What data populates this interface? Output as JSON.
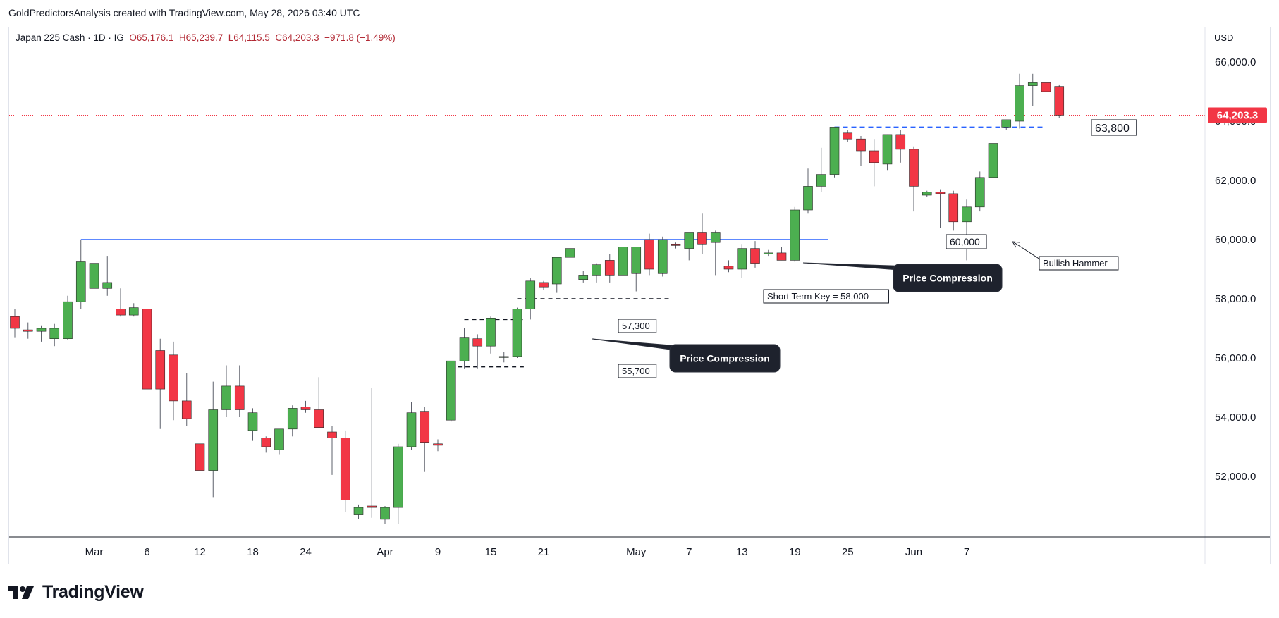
{
  "header": {
    "attribution": "GoldPredictorsAnalysis created with TradingView.com, May 28, 2026 03:40 UTC"
  },
  "legend": {
    "symbol": "Japan 225 Cash · 1D · IG",
    "open": "O65,176.1",
    "high": "H65,239.7",
    "low": "L64,115.5",
    "close": "C64,203.3",
    "change": "−971.8 (−1.49%)"
  },
  "axis_unit": "USD",
  "brand": {
    "name": "TradingView"
  },
  "colors": {
    "up": "#4caf50",
    "down": "#f23645",
    "wick": "#5d606b",
    "last_price": "#f23645",
    "level_line": "#2962ff",
    "callout_bg": "#1e222d"
  },
  "chart_data": {
    "type": "candlestick",
    "title": "Japan 225 Cash · 1D · IG",
    "ylabel": "USD",
    "ylim": [
      50000,
      67500
    ],
    "y_ticks": [
      52000,
      54000,
      56000,
      58000,
      60000,
      62000,
      64000,
      66000
    ],
    "y_tick_labels": [
      "52,000.0",
      "54,000.0",
      "56,000.0",
      "58,000.0",
      "60,000.0",
      "62,000.0",
      "64,000.0",
      "66,000.0"
    ],
    "x_tick_labels": [
      {
        "i": 6,
        "label": "Mar"
      },
      {
        "i": 10,
        "label": "6"
      },
      {
        "i": 14,
        "label": "12"
      },
      {
        "i": 18,
        "label": "18"
      },
      {
        "i": 22,
        "label": "24"
      },
      {
        "i": 28,
        "label": "Apr"
      },
      {
        "i": 32,
        "label": "9"
      },
      {
        "i": 36,
        "label": "15"
      },
      {
        "i": 40,
        "label": "21"
      },
      {
        "i": 47,
        "label": "May"
      },
      {
        "i": 51,
        "label": "7"
      },
      {
        "i": 55,
        "label": "13"
      },
      {
        "i": 59,
        "label": "19"
      },
      {
        "i": 63,
        "label": "25"
      },
      {
        "i": 68,
        "label": "Jun"
      },
      {
        "i": 72,
        "label": "7"
      }
    ],
    "last_price": 64203.3,
    "last_price_label": "64,203.3",
    "candles": [
      [
        57400,
        57650,
        56700,
        57000
      ],
      [
        56950,
        57200,
        56650,
        56900
      ],
      [
        56900,
        57100,
        56550,
        57000
      ],
      [
        56650,
        57150,
        56400,
        57000
      ],
      [
        56650,
        58100,
        56600,
        57900
      ],
      [
        57900,
        60000,
        57650,
        59250
      ],
      [
        58350,
        59300,
        58200,
        59200
      ],
      [
        58350,
        59450,
        58100,
        58550
      ],
      [
        57650,
        58350,
        57400,
        57450
      ],
      [
        57450,
        57850,
        57400,
        57700
      ],
      [
        57650,
        57800,
        53600,
        54950
      ],
      [
        56250,
        56650,
        53600,
        54950
      ],
      [
        56100,
        56550,
        53900,
        54550
      ],
      [
        54550,
        55500,
        53700,
        53950
      ],
      [
        53100,
        53650,
        51100,
        52200
      ],
      [
        52200,
        55200,
        51300,
        54250
      ],
      [
        54250,
        55750,
        54000,
        55050
      ],
      [
        55050,
        55750,
        54000,
        54250
      ],
      [
        53550,
        54300,
        53200,
        54150
      ],
      [
        53300,
        53350,
        52800,
        53000
      ],
      [
        52900,
        53600,
        52750,
        53600
      ],
      [
        53600,
        54400,
        53350,
        54300
      ],
      [
        54350,
        54550,
        54150,
        54250
      ],
      [
        54250,
        55350,
        53700,
        53650
      ],
      [
        53500,
        53700,
        52050,
        53300
      ],
      [
        53300,
        53550,
        50800,
        51200
      ],
      [
        50700,
        51050,
        50550,
        50950
      ],
      [
        51000,
        55000,
        50600,
        50950
      ],
      [
        50550,
        51000,
        50400,
        50950
      ],
      [
        50950,
        53100,
        50400,
        53000
      ],
      [
        53000,
        54500,
        52900,
        54150
      ],
      [
        54200,
        54350,
        52150,
        53150
      ],
      [
        53100,
        53250,
        52850,
        53050
      ],
      [
        53900,
        55900,
        53850,
        55900
      ],
      [
        55900,
        57000,
        55650,
        56700
      ],
      [
        56650,
        56800,
        55650,
        56400
      ],
      [
        56400,
        57400,
        56150,
        57350
      ],
      [
        56050,
        56200,
        55850,
        56050
      ],
      [
        56050,
        57700,
        56000,
        57650
      ],
      [
        57650,
        58700,
        57300,
        58600
      ],
      [
        58550,
        58600,
        58300,
        58400
      ],
      [
        58500,
        59400,
        58200,
        59400
      ],
      [
        59400,
        60000,
        58600,
        59700
      ],
      [
        58650,
        58950,
        58550,
        58800
      ],
      [
        58800,
        59200,
        58550,
        59150
      ],
      [
        59300,
        59500,
        58550,
        58800
      ],
      [
        58800,
        60100,
        58300,
        59750
      ],
      [
        58850,
        59750,
        58250,
        59750
      ],
      [
        60000,
        60200,
        58800,
        59000
      ],
      [
        58850,
        60100,
        58750,
        60000
      ],
      [
        59850,
        59900,
        59700,
        59800
      ],
      [
        59700,
        60100,
        59300,
        60250
      ],
      [
        60250,
        60900,
        59500,
        59850
      ],
      [
        59900,
        60300,
        58800,
        60250
      ],
      [
        59100,
        59300,
        58900,
        59000
      ],
      [
        59000,
        59850,
        58700,
        59700
      ],
      [
        59700,
        59950,
        59050,
        59200
      ],
      [
        59550,
        59650,
        59450,
        59550
      ],
      [
        59550,
        59750,
        59300,
        59300
      ],
      [
        59300,
        61100,
        59250,
        61000
      ],
      [
        61000,
        62400,
        60900,
        61800
      ],
      [
        61800,
        63100,
        61600,
        62200
      ],
      [
        62200,
        63800,
        62100,
        63800
      ],
      [
        63600,
        63700,
        63300,
        63400
      ],
      [
        63400,
        63500,
        62500,
        63000
      ],
      [
        63000,
        63400,
        61800,
        62600
      ],
      [
        62550,
        63550,
        62350,
        63550
      ],
      [
        63550,
        63700,
        62600,
        63050
      ],
      [
        63050,
        63150,
        60950,
        61800
      ],
      [
        61500,
        61650,
        61450,
        61600
      ],
      [
        61600,
        61700,
        60400,
        61550
      ],
      [
        61550,
        61650,
        60300,
        60600
      ],
      [
        60600,
        61350,
        59300,
        61100
      ],
      [
        61100,
        62300,
        60950,
        62100
      ],
      [
        62100,
        63350,
        62050,
        63250
      ],
      [
        63800,
        64050,
        63700,
        64050
      ],
      [
        64000,
        65600,
        63750,
        65200
      ],
      [
        65200,
        65600,
        64500,
        65300
      ],
      [
        65300,
        66500,
        64900,
        65000
      ],
      [
        65176.1,
        65239.7,
        64115.5,
        64203.3
      ]
    ],
    "annotations": {
      "level_60000_label": "60,000",
      "level_63800_label": "63,800",
      "level_58000_label": "Short Term Key = 58,000",
      "level_57300_label": "57,300",
      "level_55700_label": "55,700",
      "callout_1": "Price Compression",
      "callout_2": "Price Compression",
      "hammer_label": "Bullish Hammer"
    }
  }
}
